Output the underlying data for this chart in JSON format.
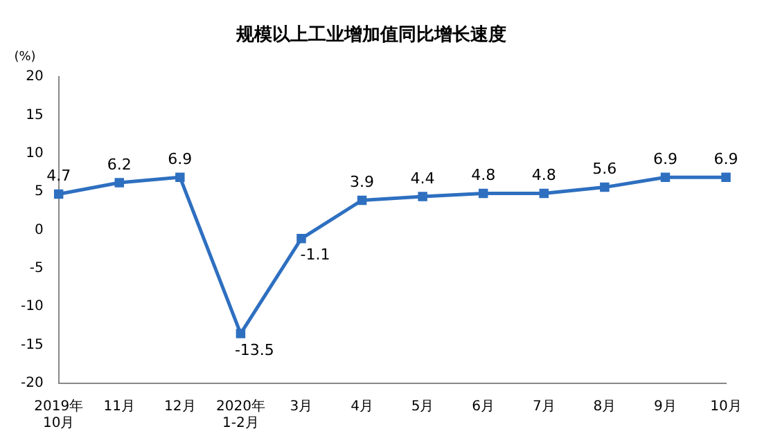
{
  "chart_data": {
    "type": "line",
    "title": "规模以上工业增加值同比增长速度",
    "ylabel": "(%)",
    "categories": [
      "2019年\n10月",
      "11月",
      "12月",
      "2020年\n1-2月",
      "3月",
      "4月",
      "5月",
      "6月",
      "7月",
      "8月",
      "9月",
      "10月"
    ],
    "series": [
      {
        "color": "#2e6fc0",
        "values": [
          4.7,
          6.2,
          6.9,
          -13.5,
          -1.1,
          3.9,
          4.4,
          4.8,
          4.8,
          5.6,
          6.9,
          6.9
        ]
      }
    ],
    "ylim": [
      -20,
      20
    ],
    "yticks": [
      -20,
      -15,
      -10,
      -5,
      0,
      5,
      10,
      15,
      20
    ],
    "grid": false,
    "legend": false,
    "marker": "square",
    "line_style": "solid",
    "data_labels": true
  }
}
